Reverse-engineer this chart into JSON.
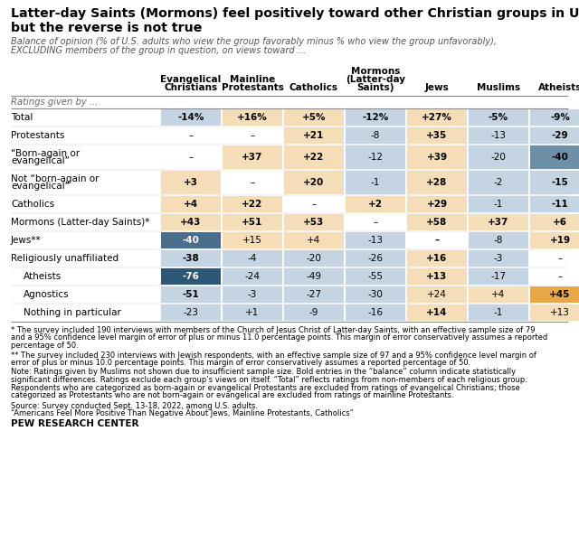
{
  "title_line1": "Latter-day Saints (Mormons) feel positively toward other Christian groups in U.S.,",
  "title_line2": "but the reverse is not true",
  "subtitle_line1": "Balance of opinion (% of U.S. adults who view the group favorably minus % who view the group unfavorably),",
  "subtitle_line2": "EXCLUDING members of the group in question, on views toward ...",
  "col_headers": [
    "Evangelical\nChristians",
    "Mainline\nProtestants",
    "Catholics",
    "Mormons\n(Latter-day\nSaints)",
    "Jews",
    "Muslims",
    "Atheists"
  ],
  "row_labels": [
    "Ratings given by ...",
    "Total",
    "Protestants",
    "“Born-again or\nevangelical”",
    "Not “born-again or\nevangelical”",
    "Catholics",
    "Mormons (Latter-day Saints)*",
    "Jews**",
    "Religiously unaffiliated",
    "Atheists",
    "Agnostics",
    "Nothing in particular"
  ],
  "row_indented": [
    false,
    false,
    false,
    false,
    false,
    false,
    false,
    false,
    false,
    true,
    true,
    true
  ],
  "data": [
    [
      null,
      null,
      null,
      null,
      null,
      null,
      null
    ],
    [
      "-14%",
      "+16%",
      "+5%",
      "-12%",
      "+27%",
      "-5%",
      "-9%"
    ],
    [
      "–",
      "–",
      "+21",
      "-8",
      "+35",
      "-13",
      "-29"
    ],
    [
      "–",
      "+37",
      "+22",
      "-12",
      "+39",
      "-20",
      "-40"
    ],
    [
      "+3",
      "–",
      "+20",
      "-1",
      "+28",
      "-2",
      "-15"
    ],
    [
      "+4",
      "+22",
      "–",
      "+2",
      "+29",
      "-1",
      "-11"
    ],
    [
      "+43",
      "+51",
      "+53",
      "–",
      "+58",
      "+37",
      "+6"
    ],
    [
      "-40",
      "+15",
      "+4",
      "-13",
      "–",
      "-8",
      "+19"
    ],
    [
      "-38",
      "-4",
      "-20",
      "-26",
      "+16",
      "-3",
      "–"
    ],
    [
      "-76",
      "-24",
      "-49",
      "-55",
      "+13",
      "-17",
      "–"
    ],
    [
      "-51",
      "-3",
      "-27",
      "-30",
      "+24",
      "+4",
      "+45"
    ],
    [
      "-23",
      "+1",
      "-9",
      "-16",
      "+14",
      "-1",
      "+13"
    ]
  ],
  "cell_colors": [
    [
      null,
      null,
      null,
      null,
      null,
      null,
      null
    ],
    [
      "#c5d4e3",
      "#f5ddb8",
      "#f5ddb8",
      "#c5d4e3",
      "#f5ddb8",
      "#c5d4e3",
      "#c5d4e3"
    ],
    [
      null,
      null,
      "#f5ddb8",
      "#c5d4e3",
      "#f5ddb8",
      "#c5d4e3",
      "#c5d4e3"
    ],
    [
      null,
      "#f5ddb8",
      "#f5ddb8",
      "#c5d4e3",
      "#f5ddb8",
      "#c5d4e3",
      "#6d8fa8"
    ],
    [
      "#f5ddb8",
      null,
      "#f5ddb8",
      "#c5d4e3",
      "#f5ddb8",
      "#c5d4e3",
      "#c5d4e3"
    ],
    [
      "#f5ddb8",
      "#f5ddb8",
      null,
      "#f5ddb8",
      "#f5ddb8",
      "#c5d4e3",
      "#c5d4e3"
    ],
    [
      "#f5ddb8",
      "#f5ddb8",
      "#f5ddb8",
      null,
      "#f5ddb8",
      "#f5ddb8",
      "#f5ddb8"
    ],
    [
      "#4a6d8c",
      "#f5ddb8",
      "#f5ddb8",
      "#c5d4e3",
      null,
      "#c5d4e3",
      "#f5ddb8"
    ],
    [
      "#c5d4e3",
      "#c5d4e3",
      "#c5d4e3",
      "#c5d4e3",
      "#f5ddb8",
      "#c5d4e3",
      null
    ],
    [
      "#2e5775",
      "#c5d4e3",
      "#c5d4e3",
      "#c5d4e3",
      "#f5ddb8",
      "#c5d4e3",
      null
    ],
    [
      "#c5d4e3",
      "#c5d4e3",
      "#c5d4e3",
      "#c5d4e3",
      "#f5ddb8",
      "#f5ddb8",
      "#e8a84a"
    ],
    [
      "#c5d4e3",
      "#c5d4e3",
      "#c5d4e3",
      "#c5d4e3",
      "#f5ddb8",
      "#c5d4e3",
      "#f5ddb8"
    ]
  ],
  "bold_cells": [
    [],
    [
      0,
      1,
      2,
      3,
      4,
      5,
      6
    ],
    [
      2,
      4,
      6
    ],
    [
      1,
      2,
      4,
      6
    ],
    [
      0,
      2,
      4,
      6
    ],
    [
      0,
      1,
      3,
      4,
      6
    ],
    [
      0,
      1,
      2,
      4,
      5,
      6
    ],
    [
      0,
      4,
      6
    ],
    [
      0,
      4
    ],
    [
      0,
      4
    ],
    [
      0,
      6
    ],
    [
      4
    ]
  ],
  "footnote1": "* The survey included 190 interviews with members of the Church of Jesus Christ of Latter-day Saints, with an effective sample size of 79\nand a 95% confidence level margin of error of plus or minus 11.0 percentage points. This margin of error conservatively assumes a reported\npercentage of 50.",
  "footnote2": "** The survey included 230 interviews with Jewish respondents, with an effective sample size of 97 and a 95% confidence level margin of\nerror of plus or minus 10.0 percentage points. This margin of error conservatively assumes a reported percentage of 50.",
  "footnote3": "Note: Ratings given by Muslims not shown due to insufficient sample size. Bold entries in the “balance” column indicate statistically\nsignificant differences. Ratings exclude each group’s views on itself. “Total” reflects ratings from non-members of each religious group.\nRespondents who are categorized as born-again or evangelical Protestants are excluded from ratings of evangelical Christians; those\ncategorized as Protestants who are not born-again or evangelical are excluded from ratings of mainline Protestants.",
  "source_line1": "Source: Survey conducted Sept. 13-18, 2022, among U.S. adults.",
  "source_line2": "“Americans Feel More Positive Than Negative About Jews, Mainline Protestants, Catholics”",
  "pew": "PEW RESEARCH CENTER",
  "bg_color": "#ffffff"
}
